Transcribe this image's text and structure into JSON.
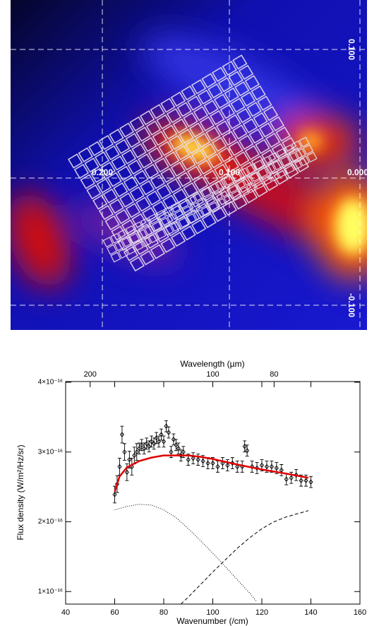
{
  "map": {
    "x_labels": [
      "0.200",
      "0.100",
      "0.000"
    ],
    "y_labels": [
      "0.100",
      "-0.100"
    ]
  },
  "chart_data": {
    "type": "line",
    "xlabel": "Wavenumber (/cm)",
    "ylabel": "Flux density (W/m²/Hz/sr)",
    "top_xlabel": "Wavelength (µm)",
    "xlim": [
      40,
      160
    ],
    "xticks": [
      40,
      60,
      80,
      100,
      120,
      140,
      160
    ],
    "top_xticks": [
      200,
      100,
      80
    ],
    "ylim": [
      8.2e-17,
      4.01e-16
    ],
    "yticks": [
      {
        "value": 1e-16,
        "label": "1×10⁻¹⁶"
      },
      {
        "value": 2e-16,
        "label": "2×10⁻¹⁶"
      },
      {
        "value": 3e-16,
        "label": "3×10⁻¹⁶"
      },
      {
        "value": 4e-16,
        "label": "4×10⁻¹⁶"
      }
    ],
    "series": [
      {
        "style": "points",
        "color": "#000000",
        "x": [
          60,
          61,
          62,
          63,
          64,
          65,
          66,
          67,
          68,
          69,
          70,
          71,
          72,
          73,
          74,
          75,
          76,
          77,
          78,
          79,
          80,
          81,
          82,
          83,
          84,
          85,
          86,
          87,
          88,
          90,
          92,
          94,
          96,
          98,
          100,
          102,
          104,
          106,
          108,
          110,
          112,
          113,
          114,
          116,
          118,
          120,
          122,
          124,
          126,
          128,
          130,
          132,
          134,
          136,
          138,
          140
        ],
        "values": [
          2.39e-16,
          2.54e-16,
          2.79e-16,
          3.25e-16,
          3e-16,
          2.71e-16,
          2.89e-16,
          2.79e-16,
          2.95e-16,
          3e-16,
          3.05e-16,
          3.1e-16,
          3.05e-16,
          3.12e-16,
          3.08e-16,
          3.15e-16,
          3.12e-16,
          3.2e-16,
          3.15e-16,
          3.25e-16,
          3.15e-16,
          3.37e-16,
          3.28e-16,
          3e-16,
          3.18e-16,
          3.1e-16,
          3.05e-16,
          2.95e-16,
          3e-16,
          2.89e-16,
          2.91e-16,
          2.89e-16,
          2.87e-16,
          2.84e-16,
          2.84e-16,
          2.79e-16,
          2.84e-16,
          2.81e-16,
          2.84e-16,
          2.79e-16,
          2.79e-16,
          3.08e-16,
          3.02e-16,
          2.79e-16,
          2.77e-16,
          2.81e-16,
          2.79e-16,
          2.79e-16,
          2.77e-16,
          2.74e-16,
          2.61e-16,
          2.63e-16,
          2.67e-16,
          2.59e-16,
          2.59e-16,
          2.57e-16
        ],
        "errors": [
          1.2e-17,
          1.2e-17,
          1.2e-17,
          1.2e-17,
          1.2e-17,
          1.2e-17,
          1.2e-17,
          1.2e-17,
          1.2e-17,
          1.2e-17,
          8e-18,
          8e-18,
          8e-18,
          8e-18,
          8e-18,
          8e-18,
          8e-18,
          8e-18,
          8e-18,
          8e-18,
          8e-18,
          8e-18,
          8e-18,
          8e-18,
          8e-18,
          8e-18,
          8e-18,
          8e-18,
          8e-18,
          8e-18,
          8e-18,
          8e-18,
          8e-18,
          8e-18,
          8e-18,
          8e-18,
          8e-18,
          8e-18,
          8e-18,
          8e-18,
          8e-18,
          8e-18,
          8e-18,
          8e-18,
          8e-18,
          8e-18,
          8e-18,
          8e-18,
          8e-18,
          8e-18,
          8e-18,
          8e-18,
          8e-18,
          8e-18,
          8e-18,
          8e-18
        ]
      },
      {
        "style": "solid",
        "color": "#e00000",
        "x": [
          60,
          62,
          65,
          70,
          75,
          80,
          90,
          95,
          100,
          110,
          120,
          130,
          139
        ],
        "values": [
          2.43e-16,
          2.65e-16,
          2.78e-16,
          2.87e-16,
          2.92e-16,
          2.95e-16,
          2.95e-16,
          2.93e-16,
          2.9e-16,
          2.82e-16,
          2.75e-16,
          2.69e-16,
          2.63e-16
        ]
      },
      {
        "style": "dotted",
        "color": "#000000",
        "x": [
          60,
          65,
          70,
          75,
          80,
          85,
          90,
          95,
          100,
          105,
          110,
          115,
          118
        ],
        "values": [
          2.17e-16,
          2.22e-16,
          2.25e-16,
          2.24e-16,
          2.17e-16,
          2.06e-16,
          1.9e-16,
          1.73e-16,
          1.55e-16,
          1.36e-16,
          1.17e-16,
          9.8e-17,
          8.5e-17
        ]
      },
      {
        "style": "dashed",
        "color": "#000000",
        "x": [
          87,
          90,
          95,
          100,
          105,
          110,
          115,
          120,
          125,
          130,
          135,
          139
        ],
        "values": [
          8.2e-17,
          9.2e-17,
          1.1e-16,
          1.28e-16,
          1.45e-16,
          1.62e-16,
          1.77e-16,
          1.9e-16,
          2e-16,
          2.07e-16,
          2.12e-16,
          2.16e-16
        ]
      }
    ]
  }
}
